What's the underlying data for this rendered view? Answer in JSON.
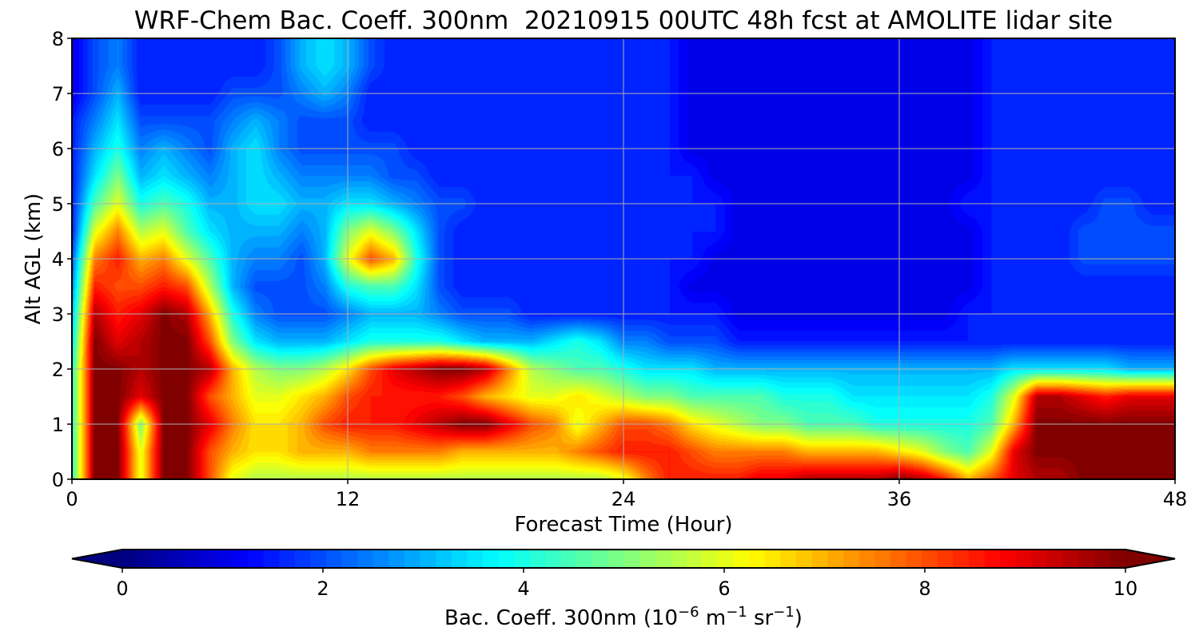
{
  "chart_data": {
    "type": "heatmap",
    "title": "WRF-Chem Bac. Coeff. 300nm  20210915 00UTC 48h fcst at AMOLITE lidar site",
    "xlabel": "Forecast Time (Hour)",
    "ylabel": "Alt AGL (km)",
    "xlim": [
      0,
      48
    ],
    "ylim": [
      0,
      8
    ],
    "xticks": [
      "0",
      "12",
      "24",
      "36",
      "48"
    ],
    "yticks": [
      "0",
      "1",
      "2",
      "3",
      "4",
      "5",
      "6",
      "7",
      "8"
    ],
    "grid": true,
    "colormap": "jet",
    "colorbar": {
      "orientation": "horizontal",
      "placement": "bottom",
      "label": "Bac. Coeff. 300nm  (10^-6 m^-1 sr^-1)",
      "label_prefix": "Bac. Coeff. 300nm  (10",
      "label_exp1": "−6",
      "label_mid1": " m",
      "label_exp2": "−1",
      "label_mid2": " sr",
      "label_exp3": "−1",
      "label_suffix": ")",
      "range": [
        0,
        10
      ],
      "ticks": [
        "0",
        "2",
        "4",
        "6",
        "8",
        "10"
      ],
      "extend": "both"
    },
    "altitudes_km": [
      0,
      0.5,
      1,
      1.5,
      2,
      2.5,
      3,
      3.5,
      4,
      4.5,
      5,
      5.5,
      6,
      6.5,
      7,
      7.5,
      8
    ],
    "hours": [
      0,
      1,
      2,
      3,
      4,
      5,
      6,
      7,
      8,
      9,
      10,
      11,
      12,
      13,
      14,
      15,
      16,
      17,
      18,
      19,
      20,
      21,
      22,
      23,
      24,
      25,
      26,
      27,
      28,
      29,
      30,
      31,
      32,
      33,
      34,
      35,
      36,
      37,
      38,
      39,
      40,
      41,
      42,
      43,
      44,
      45,
      46,
      47,
      48
    ],
    "values": [
      [
        4,
        10,
        10,
        6,
        10,
        10,
        8,
        6,
        5.5,
        5.5,
        5.5,
        5.5,
        5.5,
        5.5,
        5.5,
        5.5,
        5.5,
        5.5,
        5.5,
        5.5,
        5.5,
        5.5,
        5.5,
        5.5,
        6,
        7.5,
        8.5,
        8.5,
        8.5,
        8.5,
        9,
        9,
        9.5,
        9.5,
        9.5,
        9.5,
        10,
        9.5,
        8.5,
        7,
        8,
        9,
        9.5,
        9.5,
        10,
        10,
        10,
        10,
        10
      ],
      [
        4,
        10,
        10,
        6,
        10,
        10,
        8,
        7,
        6.5,
        6.5,
        7,
        7,
        7,
        7.5,
        7.5,
        7.5,
        7.5,
        7,
        7,
        7,
        7,
        7,
        7.5,
        8,
        8.5,
        8.5,
        8.5,
        8,
        7.5,
        7.5,
        7.5,
        7.5,
        7,
        7,
        7,
        7,
        6.5,
        6,
        5,
        4.5,
        6,
        9,
        10,
        10,
        10,
        10,
        10,
        10,
        10
      ],
      [
        4,
        10,
        10,
        5,
        10,
        10,
        9,
        7.5,
        6.5,
        6.5,
        7,
        8,
        8.5,
        8.5,
        8.5,
        9,
        9.5,
        10,
        10,
        9,
        8,
        7.5,
        6,
        7,
        8,
        8,
        7.5,
        6.5,
        6,
        5.5,
        5,
        5,
        4.5,
        4.5,
        4.5,
        4,
        4,
        4,
        4,
        4,
        4.5,
        7,
        10,
        10,
        10,
        10,
        10,
        10,
        10
      ],
      [
        4,
        10,
        10,
        9,
        10,
        10,
        8,
        7,
        6,
        6,
        6.5,
        7,
        8,
        8.5,
        8.5,
        8.5,
        8.5,
        8,
        7,
        6.5,
        6,
        6,
        6.5,
        6,
        5.5,
        5,
        5,
        4.5,
        4.5,
        4.5,
        4.5,
        4,
        4,
        4,
        3.5,
        3.5,
        3.5,
        3.5,
        3.5,
        3.5,
        4,
        6,
        9.5,
        9.5,
        9,
        8.5,
        9,
        9,
        9
      ],
      [
        4,
        10,
        10,
        9.5,
        10,
        10,
        9.5,
        7,
        5.5,
        5,
        5,
        5.5,
        6.5,
        8,
        9,
        9.5,
        10,
        10,
        9.5,
        7.5,
        5.5,
        5,
        4.5,
        4.5,
        4,
        3.5,
        3.5,
        3.5,
        3,
        3,
        3,
        3,
        3,
        3,
        3,
        3,
        3,
        3,
        3,
        3,
        3,
        3.5,
        3.5,
        3.5,
        3.5,
        3.5,
        3,
        3,
        3
      ],
      [
        3.5,
        10,
        9,
        9.5,
        10,
        10,
        8,
        5,
        3.5,
        3,
        3,
        3,
        3.5,
        4,
        4,
        4,
        4,
        3.5,
        3,
        3,
        3,
        3.5,
        4,
        3.5,
        2.5,
        2.5,
        2,
        2,
        2,
        1.5,
        1.5,
        1.5,
        1.5,
        1.5,
        1.5,
        1.5,
        1.5,
        1.5,
        1.5,
        1.5,
        1.5,
        1.5,
        1.5,
        1.5,
        1.5,
        1.5,
        1.5,
        1.5,
        1.5
      ],
      [
        3,
        9.5,
        8.5,
        9,
        10,
        9.5,
        7,
        4,
        2.5,
        2,
        2,
        2,
        2.5,
        3,
        3,
        3,
        2.5,
        2,
        2,
        2,
        1.5,
        1.5,
        1.5,
        1.5,
        1.5,
        1.5,
        1.5,
        1.5,
        1.5,
        1,
        1,
        1,
        1,
        1,
        1,
        1,
        1,
        1,
        1,
        1.5,
        1.5,
        1.5,
        1.5,
        1.5,
        1.5,
        1.5,
        1.5,
        1.5,
        1.5
      ],
      [
        2.5,
        8.5,
        8,
        8,
        8.5,
        8,
        5.5,
        3,
        2,
        2,
        2,
        2.5,
        4,
        4.5,
        4.5,
        3.5,
        2,
        1.5,
        1.5,
        1.5,
        1.5,
        1.5,
        1.5,
        1.5,
        1.5,
        1.5,
        1.5,
        1,
        1,
        1,
        1,
        1,
        1,
        1,
        1,
        1,
        1,
        1,
        1,
        1,
        1.5,
        1.5,
        1.5,
        1.5,
        1.5,
        1.5,
        1.5,
        1.5,
        1.5
      ],
      [
        2,
        7.5,
        8.5,
        7,
        7.5,
        6,
        4.5,
        3,
        2.5,
        2.5,
        2,
        3,
        6,
        8,
        7,
        4,
        2,
        1.5,
        1.5,
        1.5,
        1.5,
        1.5,
        1.5,
        1.5,
        1.5,
        1.5,
        1.5,
        1.5,
        1,
        1,
        1,
        1,
        1,
        1,
        1,
        1,
        1,
        1,
        1,
        1,
        1.5,
        1.5,
        1.5,
        1.5,
        2,
        2,
        2,
        2,
        2
      ],
      [
        1.5,
        6,
        7.5,
        5.5,
        6,
        4.5,
        3.5,
        3,
        3,
        3,
        2.5,
        3,
        5,
        6,
        5,
        3.5,
        2,
        1.5,
        1.5,
        1.5,
        1.5,
        1.5,
        1.5,
        1.5,
        1.5,
        1.5,
        1.5,
        1.5,
        1.5,
        1,
        1,
        1,
        1,
        1,
        1,
        1,
        1,
        1,
        1,
        1,
        1.5,
        1.5,
        1.5,
        1.5,
        2,
        2,
        2,
        2,
        2
      ],
      [
        1.5,
        4.5,
        6,
        4,
        4.5,
        4,
        3,
        3,
        3.5,
        3.5,
        3,
        3,
        3.5,
        3.5,
        3,
        2.5,
        2,
        2,
        1.5,
        1.5,
        1.5,
        1.5,
        1.5,
        1.5,
        1.5,
        1.5,
        1.5,
        1.5,
        1.5,
        1,
        1,
        1,
        1,
        1,
        1,
        1,
        1,
        1,
        1,
        1.5,
        1.5,
        1.5,
        1.5,
        1.5,
        1.5,
        2,
        2,
        1.5,
        1.5
      ],
      [
        1.5,
        3.5,
        5,
        3,
        3.5,
        3,
        2.5,
        3,
        3.5,
        3,
        2.5,
        2.5,
        2.5,
        2.5,
        2,
        2,
        1.5,
        1.5,
        1.5,
        1.5,
        1.5,
        1.5,
        1.5,
        1.5,
        1.5,
        1.5,
        1.5,
        1.5,
        1,
        1,
        1,
        1,
        1,
        1,
        1,
        1,
        1,
        1,
        1,
        1,
        1.5,
        1.5,
        1.5,
        1.5,
        1.5,
        1.5,
        1.5,
        1.5,
        1.5
      ],
      [
        1.5,
        3,
        4,
        2.5,
        3,
        2.5,
        2,
        3,
        3.5,
        2.5,
        2,
        2,
        2,
        2,
        2,
        1.5,
        1.5,
        1.5,
        1.5,
        1.5,
        1.5,
        1.5,
        1.5,
        1.5,
        1.5,
        1.5,
        1.5,
        1,
        1,
        1,
        1,
        1,
        1,
        1,
        1,
        1,
        1,
        1,
        1,
        1,
        1.5,
        1.5,
        1.5,
        1.5,
        1.5,
        1.5,
        1.5,
        1.5,
        1.5
      ],
      [
        1.5,
        2.5,
        3.5,
        2,
        2,
        2,
        2,
        2.5,
        3,
        2.5,
        2,
        2,
        2,
        1.5,
        1.5,
        1.5,
        1.5,
        1.5,
        1.5,
        1.5,
        1.5,
        1.5,
        1.5,
        1.5,
        1.5,
        1.5,
        1.5,
        1,
        1,
        1,
        1,
        1,
        1,
        1,
        1,
        1,
        1,
        1,
        1,
        1,
        1.5,
        1.5,
        1.5,
        1.5,
        1.5,
        1.5,
        1.5,
        1.5,
        1.5
      ],
      [
        1,
        2,
        3,
        1.5,
        1.5,
        1.5,
        1.5,
        2,
        2,
        2,
        2.5,
        3,
        2.5,
        1.5,
        1.5,
        1.5,
        1.5,
        1.5,
        1.5,
        1.5,
        1.5,
        1.5,
        1.5,
        1.5,
        1.5,
        1.5,
        1.5,
        1,
        1,
        1,
        1,
        1,
        1,
        1,
        1,
        1,
        1,
        1,
        1,
        1,
        1.5,
        1.5,
        1.5,
        1.5,
        1.5,
        1.5,
        1.5,
        1.5,
        1.5
      ],
      [
        1,
        2,
        2.5,
        1.5,
        1.5,
        1.5,
        1.5,
        1.5,
        1.5,
        2,
        3,
        3.5,
        3,
        2,
        1.5,
        1.5,
        1.5,
        1.5,
        1.5,
        1.5,
        1.5,
        1.5,
        1.5,
        1.5,
        1.5,
        1.5,
        1.5,
        1,
        1,
        1,
        1,
        1,
        1,
        1,
        1,
        1,
        1,
        1,
        1,
        1,
        1.5,
        1.5,
        1.5,
        1.5,
        1.5,
        1.5,
        1.5,
        1.5,
        1.5
      ],
      [
        1,
        2,
        2.5,
        1.5,
        1.5,
        1.5,
        1.5,
        1.5,
        1.5,
        2,
        3,
        3.5,
        3,
        2,
        1.5,
        1.5,
        1.5,
        1.5,
        1.5,
        1.5,
        1.5,
        1.5,
        1.5,
        1.5,
        1.5,
        1.5,
        1.5,
        1,
        1,
        1,
        1,
        1,
        1,
        1,
        1,
        1,
        1,
        1,
        1,
        1,
        1.5,
        1.5,
        1.5,
        1.5,
        1.5,
        1.5,
        1.5,
        1.5,
        1.5
      ]
    ]
  }
}
